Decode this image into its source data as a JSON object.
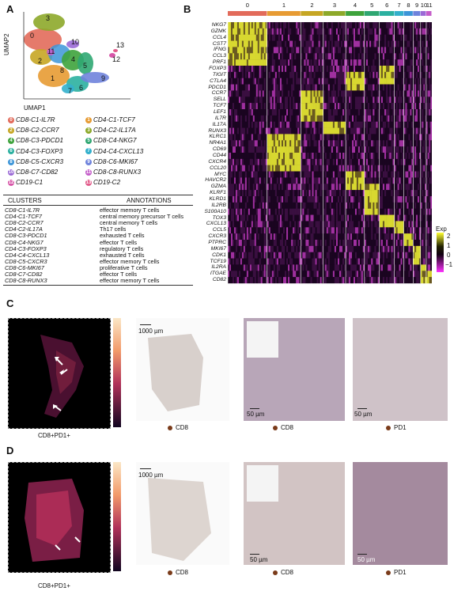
{
  "panels": {
    "a": "A",
    "b": "B",
    "c": "C",
    "d": "D"
  },
  "umap": {
    "ylabel": "UMAP2",
    "xlabel": "UMAP1",
    "cluster_numbers": [
      "3",
      "0",
      "10",
      "11",
      "2",
      "4",
      "5",
      "8",
      "1",
      "13",
      "12",
      "9",
      "6",
      "7"
    ]
  },
  "legend": [
    {
      "num": "0",
      "label": "CD8-C1-IL7R",
      "color": "#e26b5b"
    },
    {
      "num": "1",
      "label": "CD4-C1-TCF7",
      "color": "#e79b33"
    },
    {
      "num": "2",
      "label": "CD8-C2-CCR7",
      "color": "#c6a624"
    },
    {
      "num": "3",
      "label": "CD4-C2-IL17A",
      "color": "#8da92a"
    },
    {
      "num": "4",
      "label": "CD8-C3-PDCD1",
      "color": "#3ea33c"
    },
    {
      "num": "5",
      "label": "CD8-C4-NKG7",
      "color": "#2fa772"
    },
    {
      "num": "6",
      "label": "CD4-C3-FOXP3",
      "color": "#2bb0a0"
    },
    {
      "num": "7",
      "label": "CD4-C4-CXCL13",
      "color": "#33b0cc"
    },
    {
      "num": "8",
      "label": "CD8-C5-CXCR3",
      "color": "#3c95d8"
    },
    {
      "num": "9",
      "label": "CD8-C6-MKI67",
      "color": "#6f83dc"
    },
    {
      "num": "10",
      "label": "CD8-C7-CD82",
      "color": "#9b6ad6"
    },
    {
      "num": "11",
      "label": "CD8-C8-RUNX3",
      "color": "#c45dc9"
    },
    {
      "num": "12",
      "label": "CD19-C1",
      "color": "#d756a8"
    },
    {
      "num": "13",
      "label": "CD19-C2",
      "color": "#e25a8a"
    }
  ],
  "table": {
    "header_clusters": "CLUSTERS",
    "header_annotations": "ANNOTATIONS",
    "rows": [
      {
        "cluster": "CD8-C1-IL7R",
        "annotation": "effector memory T cells"
      },
      {
        "cluster": "CD4-C1-TCF7",
        "annotation": "central memory precursor T cells"
      },
      {
        "cluster": "CD8-C2-CCR7",
        "annotation": "central memory T cells"
      },
      {
        "cluster": "CD4-C2-IL17A",
        "annotation": "Th17 cells"
      },
      {
        "cluster": "CD8-C3-PDCD1",
        "annotation": "exhausted T cells"
      },
      {
        "cluster": "CD8-C4-NKG7",
        "annotation": "effector T cells"
      },
      {
        "cluster": "CD4-C3-FOXP3",
        "annotation": "regulatory T cells"
      },
      {
        "cluster": "CD4-C4-CXCL13",
        "annotation": "exhausted T cells"
      },
      {
        "cluster": "CD8-C5-CXCR3",
        "annotation": "effector memory T cells"
      },
      {
        "cluster": "CD8-C6-MKI67",
        "annotation": "proliferative T cells"
      },
      {
        "cluster": "CD8-C7-CD82",
        "annotation": "effector T cells"
      },
      {
        "cluster": "CD8-C8-RUNX3",
        "annotation": "effector memory T cells"
      }
    ]
  },
  "chart_data": {
    "type": "heatmap",
    "columns": [
      "0",
      "1",
      "2",
      "3",
      "4",
      "5",
      "6",
      "7",
      "8",
      "9",
      "10",
      "11"
    ],
    "column_colors": [
      "#e26b5b",
      "#e79b33",
      "#c6a624",
      "#8da92a",
      "#3ea33c",
      "#2fa772",
      "#2bb0a0",
      "#33b0cc",
      "#3c95d8",
      "#6f83dc",
      "#9b6ad6",
      "#c45dc9"
    ],
    "column_widths": [
      42,
      36,
      24,
      24,
      20,
      16,
      16,
      10,
      10,
      8,
      6,
      6
    ],
    "genes": [
      "NKG7",
      "GZMK",
      "CCL4",
      "CST7",
      "IFNG",
      "CCL3",
      "PRF1",
      "FOXP3",
      "TIGIT",
      "CTLA4",
      "PDCD1",
      "CCR7",
      "SELL",
      "TCF7",
      "LEF1",
      "IL7R",
      "IL17A",
      "RUNX3",
      "KLRC1",
      "NR4A1",
      "CD69",
      "CD44",
      "CXCR4",
      "CCL20",
      "MYC",
      "HAVCR2",
      "GZMA",
      "KLRF1",
      "KLRD1",
      "IL2RB",
      "S100A10",
      "TOX3",
      "CXCL13",
      "CCL5",
      "CXCR3",
      "PTPRC",
      "MKI67",
      "CDK1",
      "TCF19",
      "IL2RA",
      "ITGAE",
      "CD82"
    ],
    "legend_title": "Exp",
    "legend_ticks": [
      "2",
      "1",
      "0",
      "−1"
    ]
  },
  "row_c": {
    "caption_map": "CD8+PD1+",
    "scale1": "1000 µm",
    "scale2": "50 µm",
    "scale3": "50 µm",
    "label1": "CD8",
    "label2": "CD8",
    "label3": "PD1"
  },
  "row_d": {
    "caption_map": "CD8+PD1+",
    "scale1": "1000 µm",
    "scale2": "50 µm",
    "scale3": "50 µm",
    "label1": "CD8",
    "label2": "CD8",
    "label3": "PD1"
  }
}
